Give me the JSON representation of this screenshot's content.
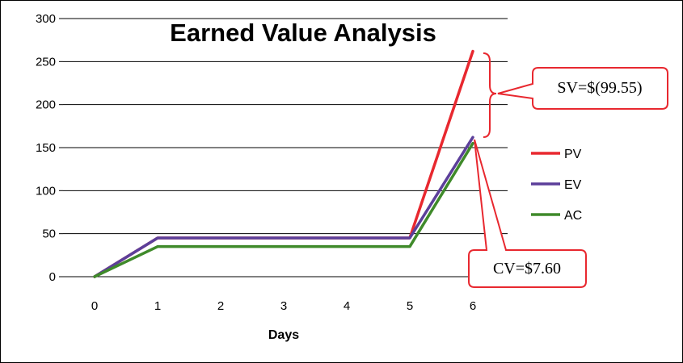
{
  "chart_data": {
    "type": "line",
    "title": "Earned Value Analysis",
    "xlabel": "Days",
    "ylabel": "",
    "x": [
      0,
      1,
      2,
      3,
      4,
      5,
      6
    ],
    "ylim": [
      0,
      300
    ],
    "yticks": [
      0,
      50,
      100,
      150,
      200,
      250,
      300
    ],
    "grid": true,
    "legend_position": "right",
    "series": [
      {
        "name": "PV",
        "color": "#e8282f",
        "values": [
          0,
          45,
          45,
          45,
          45,
          45,
          262
        ]
      },
      {
        "name": "EV",
        "color": "#5c3f9a",
        "values": [
          0,
          45,
          45,
          45,
          45,
          45,
          162
        ]
      },
      {
        "name": "AC",
        "color": "#3f8a2a",
        "values": [
          0,
          35,
          35,
          35,
          35,
          35,
          155
        ]
      }
    ],
    "annotations": [
      {
        "text": "SV=$(99.55)"
      },
      {
        "text": "CV=$7.60"
      }
    ]
  }
}
